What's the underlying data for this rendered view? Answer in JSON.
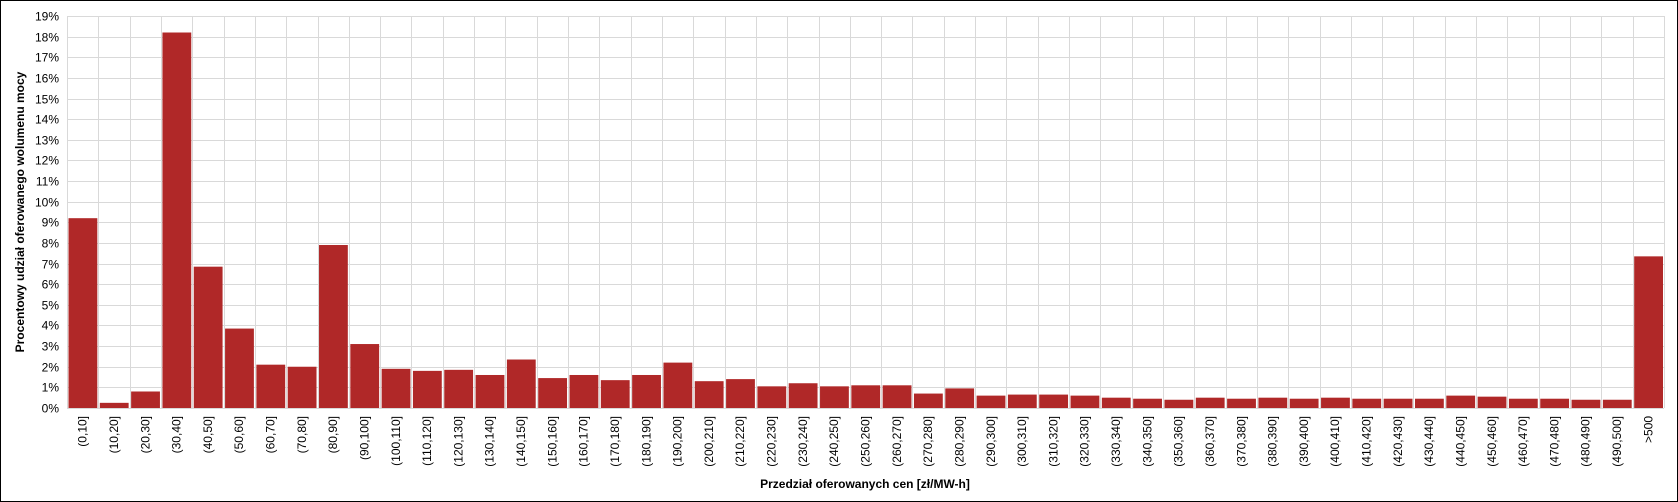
{
  "chart_data": {
    "type": "bar",
    "title": "",
    "xlabel": "Przedział oferowanych cen [zł/MW-h]",
    "ylabel": "Procentowy udział oferowanego wolumenu mocy",
    "ylim": [
      0,
      19
    ],
    "yticks": [
      "0%",
      "1%",
      "2%",
      "3%",
      "4%",
      "5%",
      "6%",
      "7%",
      "8%",
      "9%",
      "10%",
      "11%",
      "12%",
      "13%",
      "14%",
      "15%",
      "16%",
      "17%",
      "18%",
      "19%"
    ],
    "grid": true,
    "bar_color": "#b02828",
    "grid_color": "#d9d9d9",
    "categories": [
      "(0,10]",
      "(10,20]",
      "(20,30]",
      "(30,40]",
      "(40,50]",
      "(50,60]",
      "(60,70]",
      "(70,80]",
      "(80,90]",
      "(90,100]",
      "(100,110]",
      "(110,120]",
      "(120,130]",
      "(130,140]",
      "(140,150]",
      "(150,160]",
      "(160,170]",
      "(170,180]",
      "(180,190]",
      "(190,200]",
      "(200,210]",
      "(210,220]",
      "(220,230]",
      "(230,240]",
      "(240,250]",
      "(250,260]",
      "(260,270]",
      "(270,280]",
      "(280,290]",
      "(290,300]",
      "(300,310]",
      "(310,320]",
      "(320,330]",
      "(330,340]",
      "(340,350]",
      "(350,360]",
      "(360,370]",
      "(370,380]",
      "(380,390]",
      "(390,400]",
      "(400,410]",
      "(410,420]",
      "(420,430]",
      "(430,440]",
      "(440,450]",
      "(450,460]",
      "(460,470]",
      "(470,480]",
      "(480,490]",
      "(490,500]",
      ">500"
    ],
    "values": [
      9.2,
      0.25,
      0.8,
      18.2,
      6.85,
      3.85,
      2.1,
      2.0,
      7.9,
      3.1,
      1.9,
      1.8,
      1.85,
      1.6,
      2.35,
      1.45,
      1.6,
      1.35,
      1.6,
      2.2,
      1.3,
      1.4,
      1.05,
      1.2,
      1.05,
      1.1,
      1.1,
      0.7,
      0.95,
      0.6,
      0.65,
      0.65,
      0.6,
      0.5,
      0.45,
      0.4,
      0.5,
      0.45,
      0.5,
      0.45,
      0.5,
      0.45,
      0.45,
      0.45,
      0.6,
      0.55,
      0.45,
      0.45,
      0.4,
      0.4,
      7.35
    ]
  }
}
